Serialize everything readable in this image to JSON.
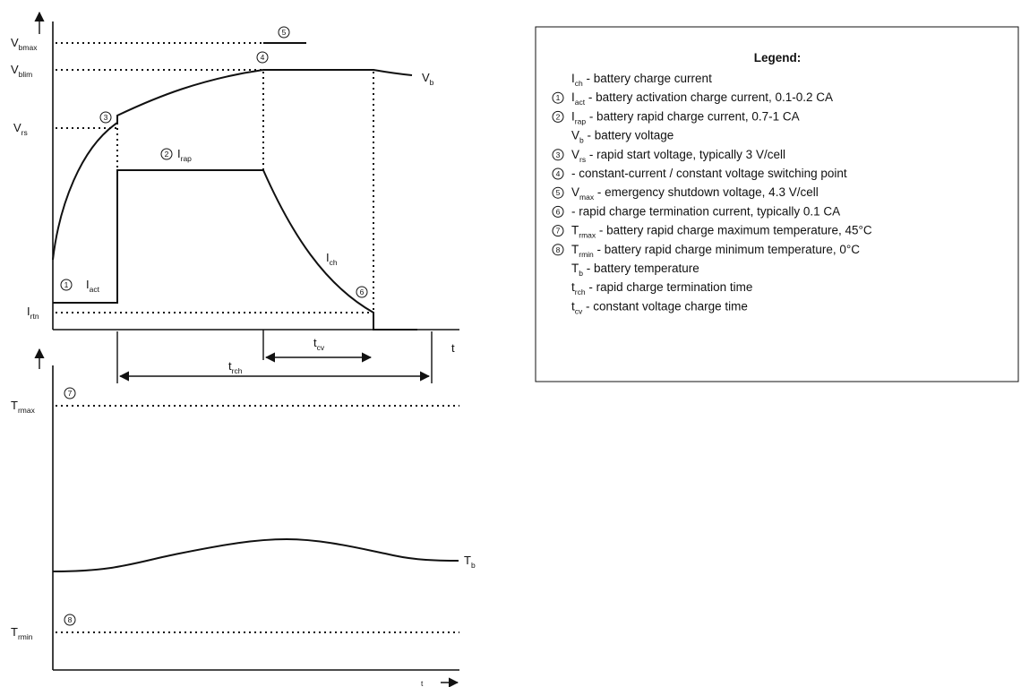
{
  "diagram": {
    "top_labels": {
      "v_bmax": {
        "main": "V",
        "sub": "bmax"
      },
      "v_blim": {
        "main": "V",
        "sub": "blim"
      },
      "v_rs": {
        "main": "V",
        "sub": "rs"
      },
      "i_rtn": {
        "main": "I",
        "sub": "rtn"
      },
      "v_b": {
        "main": "V",
        "sub": "b"
      },
      "i_rap": {
        "main": "I",
        "sub": "rap"
      },
      "i_act": {
        "main": "I",
        "sub": "act"
      },
      "i_ch": {
        "main": "I",
        "sub": "ch"
      },
      "t_cv": {
        "main": "t",
        "sub": "cv"
      },
      "t_rch": {
        "main": "t",
        "sub": "rch"
      },
      "t_axis": "t"
    },
    "bottom_labels": {
      "t_rmax": {
        "main": "T",
        "sub": "rmax"
      },
      "t_rmin": {
        "main": "T",
        "sub": "rmin"
      },
      "t_b": {
        "main": "T",
        "sub": "b"
      },
      "t_axis": "t"
    },
    "markers": [
      "1",
      "2",
      "3",
      "4",
      "5",
      "6",
      "7",
      "8"
    ]
  },
  "legend": {
    "title": "Legend:",
    "items": [
      {
        "marker": "",
        "main": "I",
        "sub": "ch",
        "text": " - battery charge current"
      },
      {
        "marker": "1",
        "main": "I",
        "sub": "act",
        "text": " - battery activation charge current, 0.1-0.2 CA"
      },
      {
        "marker": "2",
        "main": "I",
        "sub": "rap",
        "text": " - battery rapid charge current, 0.7-1 CA"
      },
      {
        "marker": "",
        "main": "V",
        "sub": "b",
        "text": " - battery voltage"
      },
      {
        "marker": "3",
        "main": "V",
        "sub": "rs",
        "text": " - rapid start voltage, typically 3 V/cell"
      },
      {
        "marker": "4",
        "main": "",
        "sub": "",
        "text": " - constant-current / constant voltage switching point"
      },
      {
        "marker": "5",
        "main": " V",
        "sub": "max",
        "text": " - emergency shutdown voltage,  4.3 V/cell"
      },
      {
        "marker": "6",
        "main": "",
        "sub": "",
        "text": " - rapid charge termination current, typically 0.1 CA"
      },
      {
        "marker": "7",
        "main": "T",
        "sub": "rmax",
        "text": " - battery rapid charge maximum temperature,  45°C"
      },
      {
        "marker": "8",
        "main": "T",
        "sub": "rmin",
        "text": " - battery rapid charge minimum temperature, 0°C"
      },
      {
        "marker": "",
        "main": "T",
        "sub": "b",
        "text": " - battery temperature"
      },
      {
        "marker": "",
        "main": "t",
        "sub": "rch",
        "text": " - rapid charge termination time"
      },
      {
        "marker": "",
        "main": "t",
        "sub": "cv",
        "text": " - constant voltage charge time"
      }
    ]
  }
}
